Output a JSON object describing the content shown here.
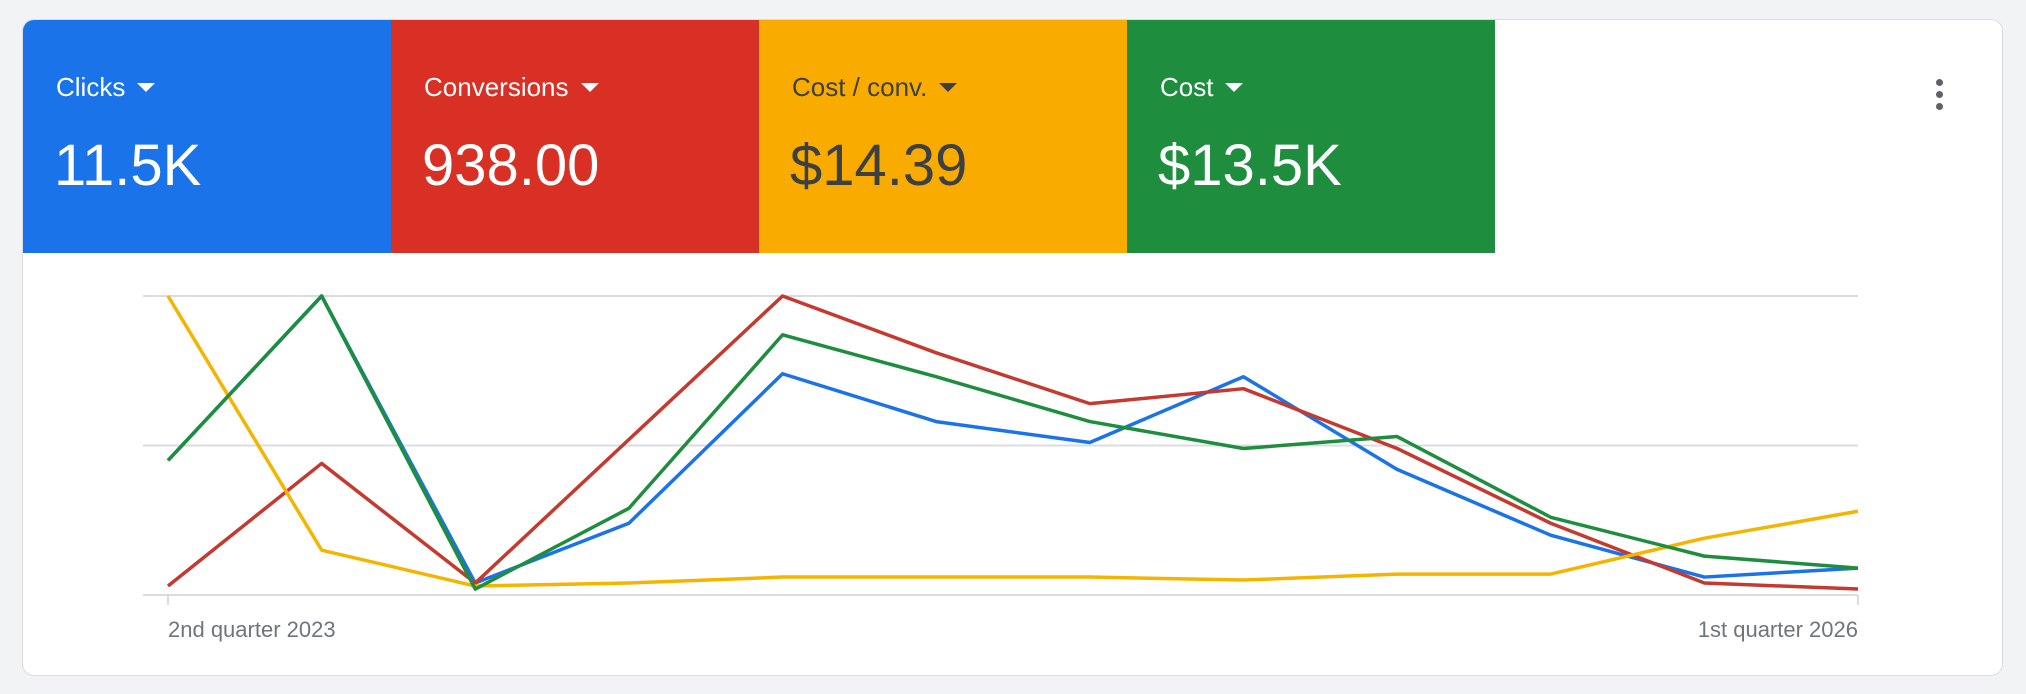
{
  "tiles": [
    {
      "label": "Clicks",
      "value": "11.5K",
      "color": "#1a73e8",
      "text_color": "#ffffff"
    },
    {
      "label": "Conversions",
      "value": "938.00",
      "color": "#d93025",
      "text_color": "#ffffff"
    },
    {
      "label": "Cost / conv.",
      "value": "$14.39",
      "color": "#f9ab00",
      "text_color": "#3c4043"
    },
    {
      "label": "Cost",
      "value": "$13.5K",
      "color": "#1e8e3e",
      "text_color": "#ffffff"
    }
  ],
  "menu_icon": "more-vert-icon",
  "chart_data": {
    "type": "line",
    "x_tick_labels": [
      "2nd quarter 2023",
      "1st quarter 2026"
    ],
    "points": 12,
    "y_scale": "normalized per series (no printed axis)",
    "ylim": [
      0,
      1
    ],
    "grid": true,
    "series": [
      {
        "metric": "Clicks",
        "color": "#1a73e8",
        "values": [
          0.45,
          1.0,
          0.04,
          0.24,
          0.74,
          0.58,
          0.51,
          0.73,
          0.42,
          0.2,
          0.06,
          0.09
        ]
      },
      {
        "metric": "Conversions",
        "color": "#c5392f",
        "values": [
          0.03,
          0.44,
          0.04,
          0.52,
          1.0,
          0.81,
          0.64,
          0.69,
          0.49,
          0.24,
          0.04,
          0.02
        ]
      },
      {
        "metric": "Cost / conv.",
        "color": "#f4b400",
        "values": [
          1.0,
          0.15,
          0.03,
          0.04,
          0.06,
          0.06,
          0.06,
          0.05,
          0.07,
          0.07,
          0.19,
          0.28
        ]
      },
      {
        "metric": "Cost",
        "color": "#1e8e3e",
        "values": [
          0.45,
          1.0,
          0.02,
          0.29,
          0.87,
          0.73,
          0.58,
          0.49,
          0.53,
          0.26,
          0.13,
          0.09
        ]
      }
    ]
  }
}
